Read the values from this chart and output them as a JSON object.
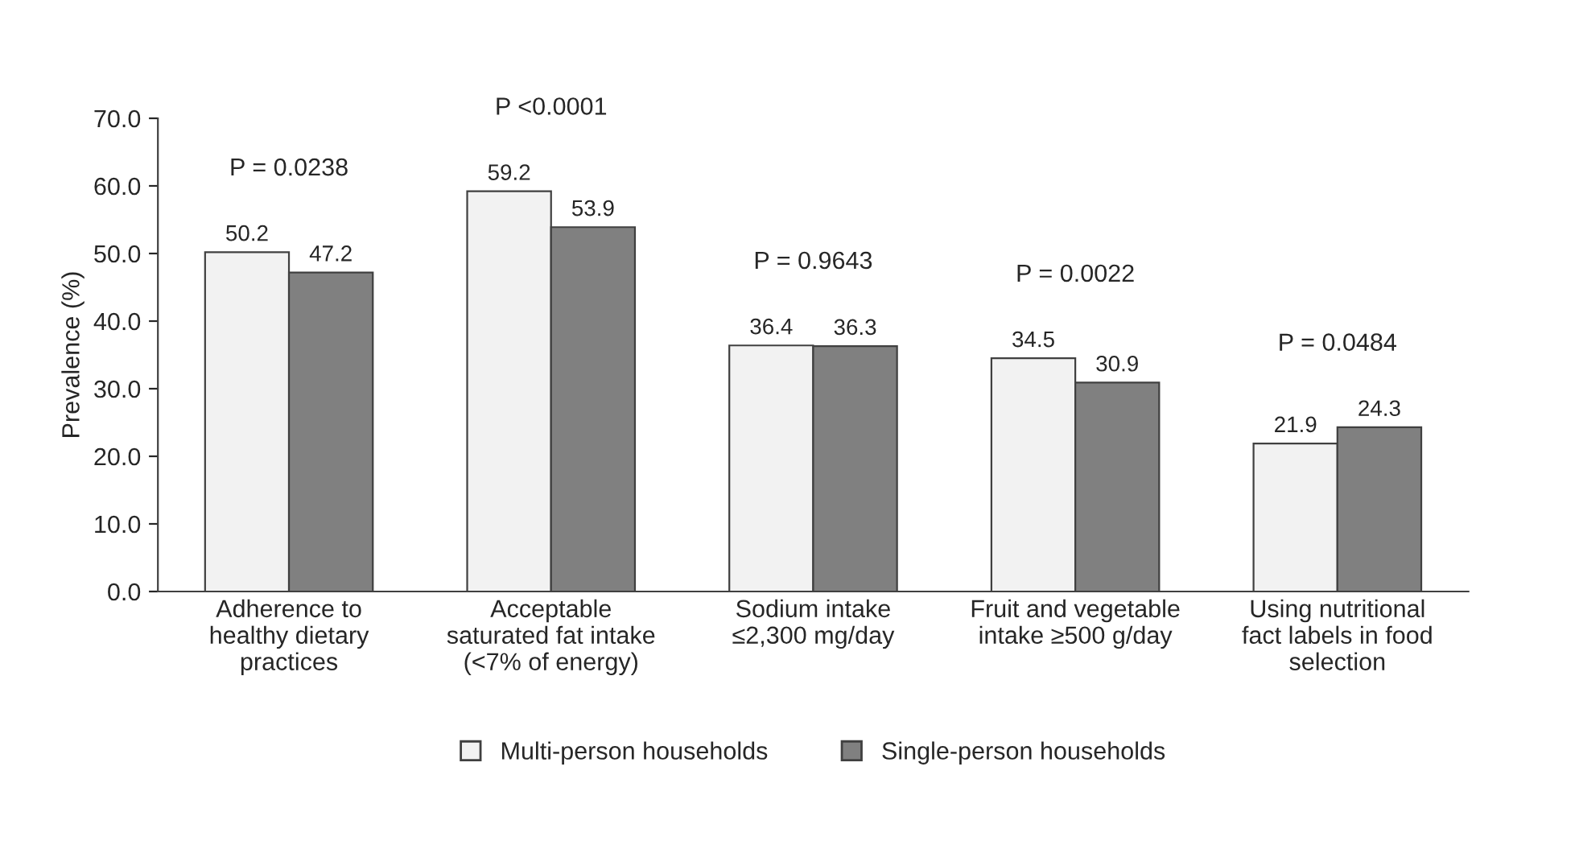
{
  "chart_data": {
    "type": "bar",
    "ylabel": "Prevalence (%)",
    "categories": [
      "Adherence to\nhealthy dietary\npractices",
      "Acceptable\nsaturated fat intake\n(<7% of energy)",
      "Sodium intake\n≤2,300 mg/day",
      "Fruit and vegetable\nintake ≥500 g/day",
      "Using nutritional\nfact labels in food\nselection"
    ],
    "series": [
      {
        "name": "Multi-person households",
        "color": "#f2f2f2",
        "values": [
          50.2,
          59.2,
          36.4,
          34.5,
          21.9
        ]
      },
      {
        "name": "Single-person households",
        "color": "#808080",
        "values": [
          47.2,
          53.9,
          36.3,
          30.9,
          24.3
        ]
      }
    ],
    "ylim": [
      0,
      70
    ],
    "yticks": [
      {
        "value": 0,
        "label": "0.0"
      },
      {
        "value": 10,
        "label": "10.0"
      },
      {
        "value": 20,
        "label": "20.0"
      },
      {
        "value": 30,
        "label": "30.0"
      },
      {
        "value": 40,
        "label": "40.0"
      },
      {
        "value": 50,
        "label": "50.0"
      },
      {
        "value": 60,
        "label": "60.0"
      },
      {
        "value": 70,
        "label": "70.0"
      }
    ],
    "data_labels": true,
    "grid": false,
    "legend": "bottom",
    "annotations": [
      "P = 0.0238",
      "P <0.0001",
      "P = 0.9643",
      "P = 0.0022",
      "P = 0.0484"
    ]
  }
}
